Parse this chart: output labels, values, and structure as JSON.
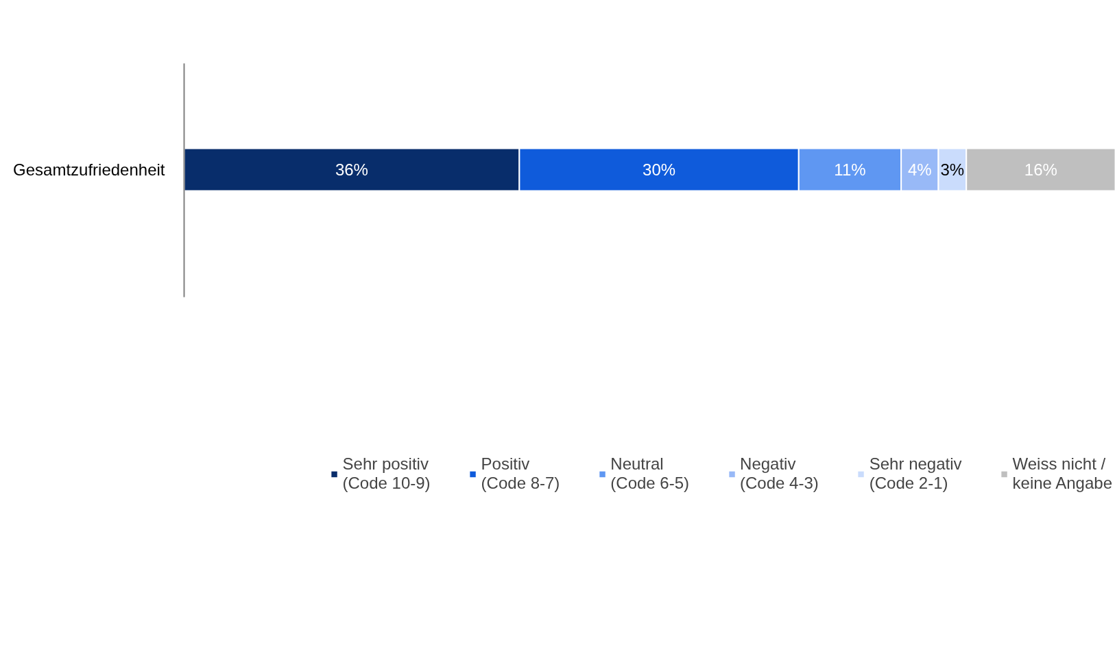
{
  "chart_data": {
    "type": "bar",
    "orientation": "horizontal",
    "stacked": true,
    "legend": "bottom",
    "grid": false,
    "tick_labels": "y",
    "categories": [
      "Gesamtzufriedenheit"
    ],
    "series": [
      {
        "name": "Sehr positiv\n(Code 10-9)",
        "color": "#082d6b",
        "values": [
          36
        ],
        "value_labels": [
          "36%"
        ]
      },
      {
        "name": "Positiv\n(Code 8-7)",
        "color": "#0f5bdb",
        "values": [
          30
        ],
        "value_labels": [
          "30%"
        ]
      },
      {
        "name": "Neutral\n(Code 6-5)",
        "color": "#5f97f2",
        "values": [
          11
        ],
        "value_labels": [
          "11%"
        ]
      },
      {
        "name": "Negativ\n(Code 4-3)",
        "color": "#98b9f7",
        "values": [
          4
        ],
        "value_labels": [
          "4%"
        ]
      },
      {
        "name": "Sehr negativ\n(Code 2-1)",
        "color": "#cadcfc",
        "values": [
          3
        ],
        "value_labels": [
          "3%"
        ]
      },
      {
        "name": "Weiss nicht /\nkeine Angabe",
        "color": "#bfbfbf",
        "values": [
          16
        ],
        "value_labels": [
          "16%"
        ]
      }
    ]
  }
}
